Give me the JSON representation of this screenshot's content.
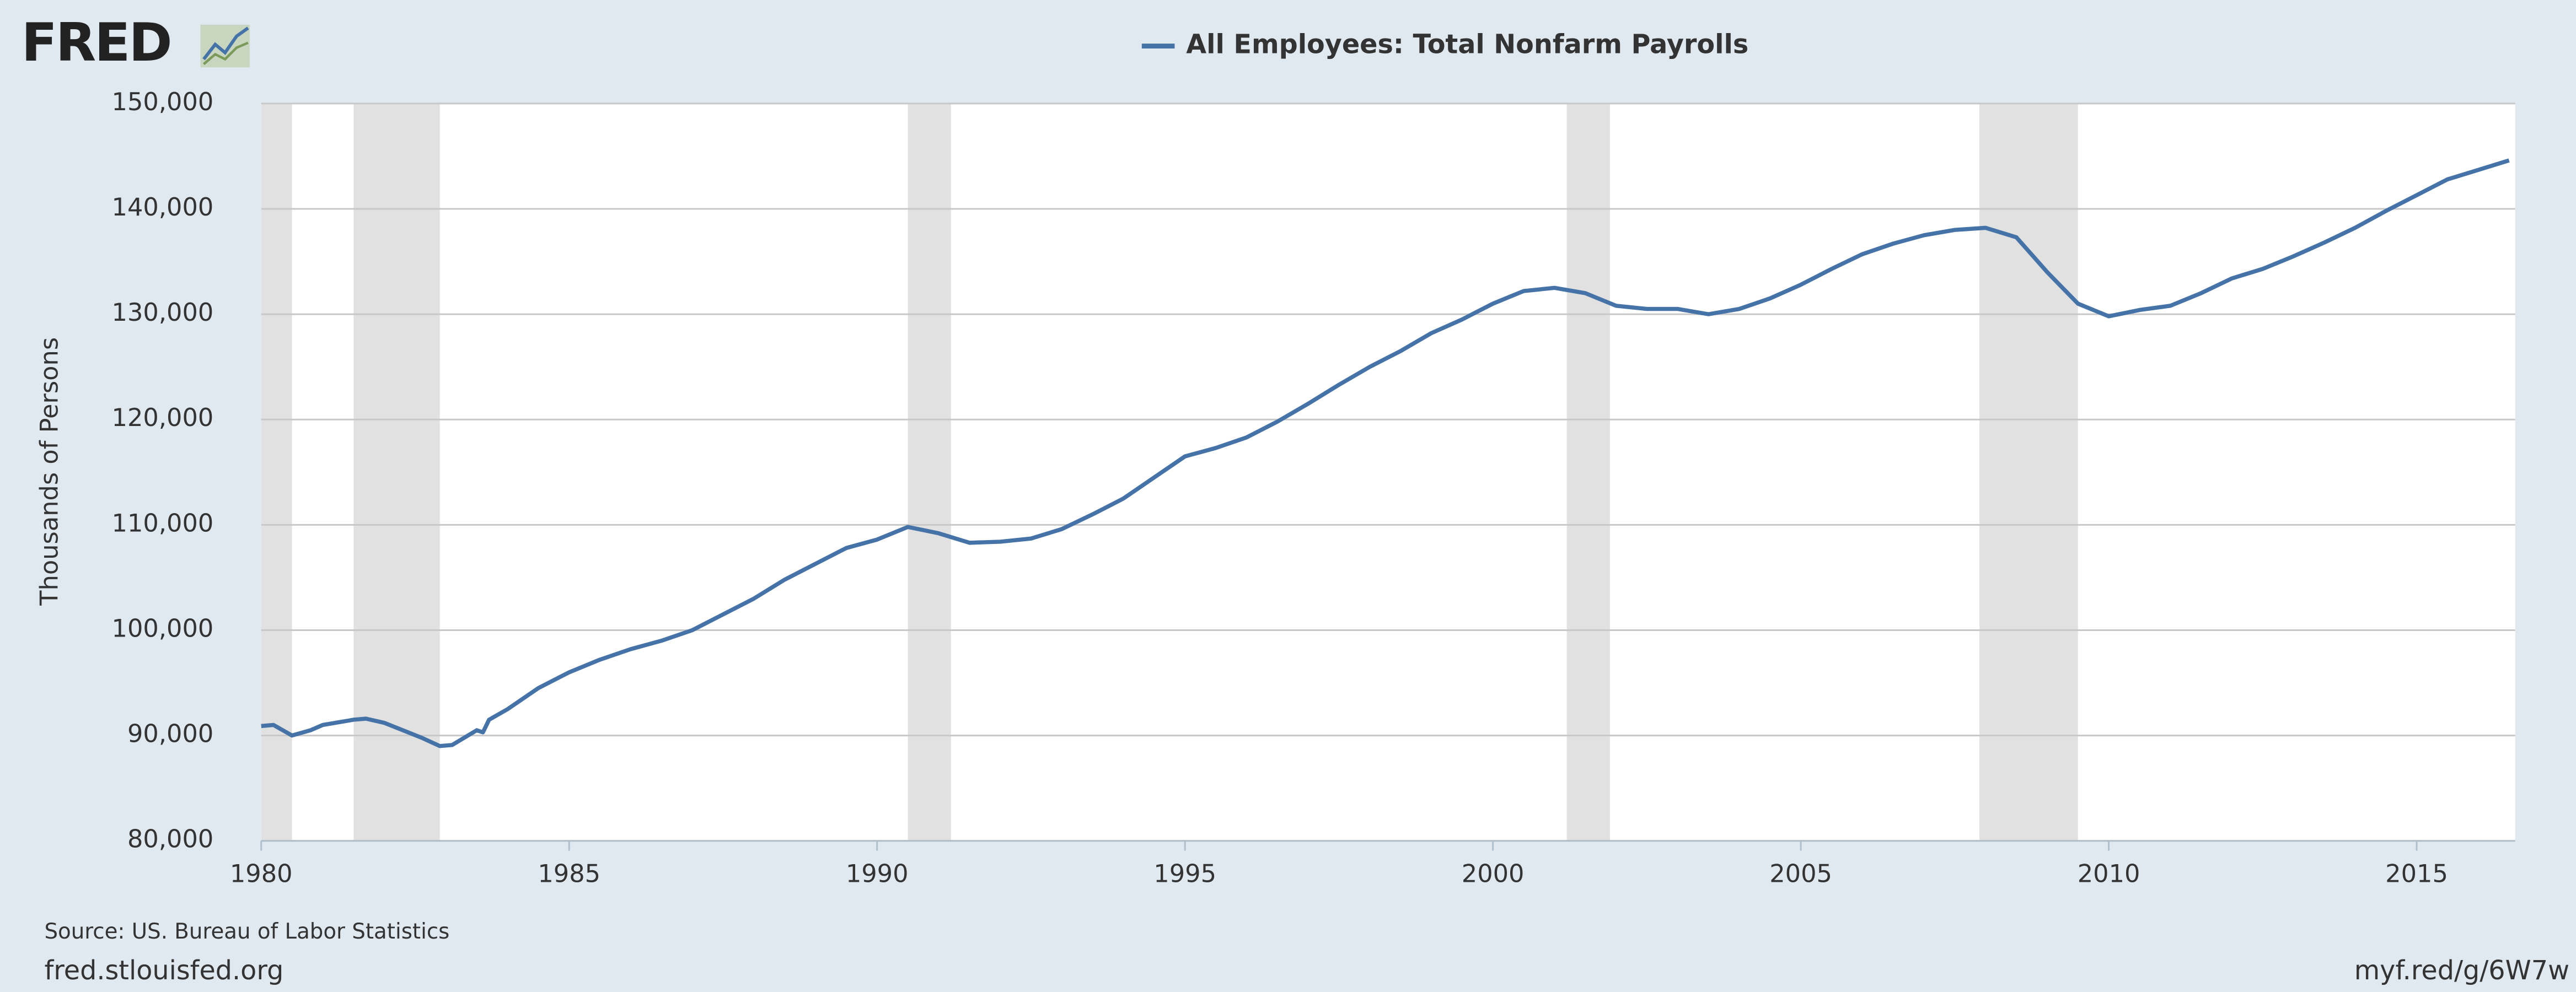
{
  "header": {
    "logo": "FRED"
  },
  "chart_data": {
    "type": "line",
    "legend": "top",
    "ylabel": "Thousands of Persons",
    "x": [
      1980.0,
      1980.2,
      1980.5,
      1980.8,
      1981.0,
      1981.5,
      1981.7,
      1982.0,
      1982.3,
      1982.6,
      1982.9,
      1983.1,
      1983.5,
      1983.6,
      1983.7,
      1984.0,
      1984.5,
      1985.0,
      1985.5,
      1986.0,
      1986.5,
      1987.0,
      1987.5,
      1988.0,
      1988.5,
      1989.0,
      1989.5,
      1990.0,
      1990.5,
      1991.0,
      1991.5,
      1992.0,
      1992.5,
      1993.0,
      1993.5,
      1994.0,
      1994.5,
      1995.0,
      1995.5,
      1996.0,
      1996.5,
      1997.0,
      1997.5,
      1998.0,
      1998.5,
      1999.0,
      1999.5,
      2000.0,
      2000.5,
      2001.0,
      2001.5,
      2002.0,
      2002.5,
      2003.0,
      2003.5,
      2004.0,
      2004.5,
      2005.0,
      2005.5,
      2006.0,
      2006.5,
      2007.0,
      2007.5,
      2008.0,
      2008.5,
      2009.0,
      2009.5,
      2010.0,
      2010.5,
      2011.0,
      2011.5,
      2012.0,
      2012.5,
      2013.0,
      2013.5,
      2014.0,
      2014.5,
      2015.0,
      2015.5,
      2016.0,
      2016.5
    ],
    "series": [
      {
        "name": "All Employees: Total Nonfarm Payrolls",
        "color": "#4572a7",
        "values": [
          90900,
          91000,
          90000,
          90500,
          91000,
          91500,
          91600,
          91200,
          90500,
          89800,
          89000,
          89100,
          90500,
          90300,
          91500,
          92500,
          94500,
          96000,
          97200,
          98200,
          99000,
          100000,
          101500,
          103000,
          104800,
          106300,
          107800,
          108600,
          109800,
          109200,
          108300,
          108400,
          108700,
          109600,
          111000,
          112500,
          114500,
          116500,
          117300,
          118300,
          119800,
          121500,
          123300,
          125000,
          126500,
          128200,
          129500,
          131000,
          132200,
          132500,
          132000,
          130800,
          130500,
          130500,
          130000,
          130500,
          131500,
          132800,
          134300,
          135700,
          136700,
          137500,
          138000,
          138200,
          137300,
          134000,
          131000,
          129800,
          130400,
          130800,
          132000,
          133400,
          134300,
          135500,
          136800,
          138200,
          139800,
          141300,
          142800,
          143700,
          144600
        ]
      }
    ],
    "recessions": [
      [
        1980.0,
        1980.5
      ],
      [
        1981.5,
        1982.9
      ],
      [
        1990.5,
        1991.2
      ],
      [
        2001.2,
        2001.9
      ],
      [
        2007.9,
        2009.5
      ]
    ],
    "recession_color": "#e1e1e1",
    "xlim": [
      1980,
      2016.6
    ],
    "ylim": [
      80000,
      150000
    ],
    "xticks": [
      1980,
      1985,
      1990,
      1995,
      2000,
      2005,
      2010,
      2015
    ],
    "yticks": [
      {
        "value": 80000,
        "label": "80,000"
      },
      {
        "value": 90000,
        "label": "90,000"
      },
      {
        "value": 100000,
        "label": "100,000"
      },
      {
        "value": 110000,
        "label": "110,000"
      },
      {
        "value": 120000,
        "label": "120,000"
      },
      {
        "value": 130000,
        "label": "130,000"
      },
      {
        "value": 140000,
        "label": "140,000"
      },
      {
        "value": 150000,
        "label": "150,000"
      }
    ],
    "grid": true
  },
  "footer": {
    "source": "Source: US. Bureau of Labor Statistics",
    "site": "fred.stlouisfed.org",
    "link": "myf.red/g/6W7w"
  }
}
